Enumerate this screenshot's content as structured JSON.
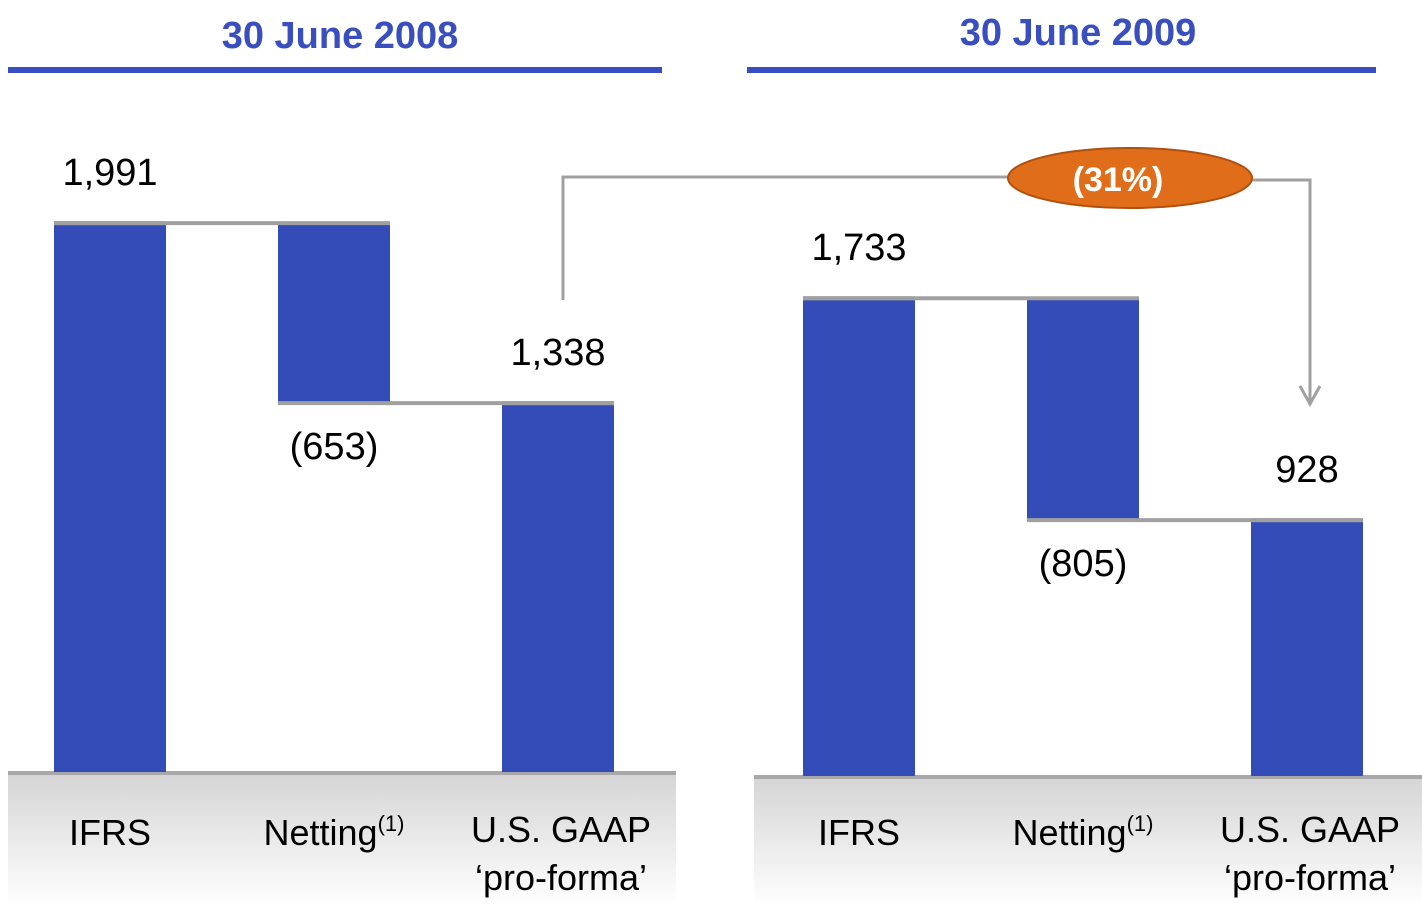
{
  "chart_data": [
    {
      "type": "waterfall",
      "title": "30 June 2008",
      "categories": [
        "IFRS",
        "Netting",
        [
          "U.S. GAAP",
          "‘pro-forma’"
        ]
      ],
      "category_footnotes": [
        null,
        "(1)",
        null
      ],
      "values": [
        1991,
        -653,
        1338
      ],
      "value_labels": [
        "1,991",
        "(653)",
        "1,338"
      ],
      "is_total": [
        true,
        false,
        true
      ],
      "color": "#334cb8"
    },
    {
      "type": "waterfall",
      "title": "30 June 2009",
      "categories": [
        "IFRS",
        "Netting",
        [
          "U.S. GAAP",
          "‘pro-forma’"
        ]
      ],
      "category_footnotes": [
        null,
        "(1)",
        null
      ],
      "values": [
        1733,
        -805,
        928
      ],
      "value_labels": [
        "1,733",
        "(805)",
        "928"
      ],
      "is_total": [
        true,
        false,
        true
      ],
      "color": "#334cb8",
      "annotation": {
        "text": "(31%)",
        "color": "#e06d1a"
      }
    }
  ]
}
